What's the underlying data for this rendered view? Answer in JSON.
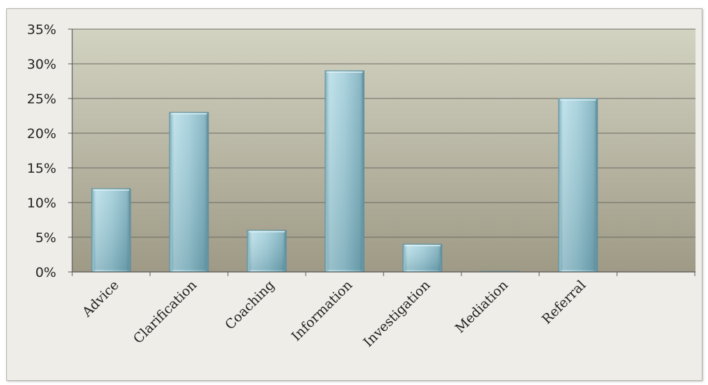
{
  "chart_data": {
    "type": "bar",
    "categories": [
      "Advice",
      "Clarification",
      "Coaching",
      "Information",
      "Investigation",
      "Mediation",
      "Referral"
    ],
    "values": [
      12,
      23,
      6,
      29,
      4,
      0,
      25
    ],
    "value_format": "percent",
    "ylim": [
      0,
      35
    ],
    "yticks": [
      0,
      5,
      10,
      15,
      20,
      25,
      30,
      35
    ],
    "ytick_labels": [
      "0%",
      "5%",
      "10%",
      "15%",
      "20%",
      "25%",
      "30%",
      "35%"
    ],
    "grid": true,
    "legend": "none",
    "colors": {
      "bar": "#93c4d2",
      "bar_edge": "#5e8e9c",
      "plot_bg_top": "#d3d3c2",
      "plot_bg_bottom": "#9e9a86",
      "gridline": "#6b6a63",
      "frame_bg": "#eeede7"
    }
  }
}
